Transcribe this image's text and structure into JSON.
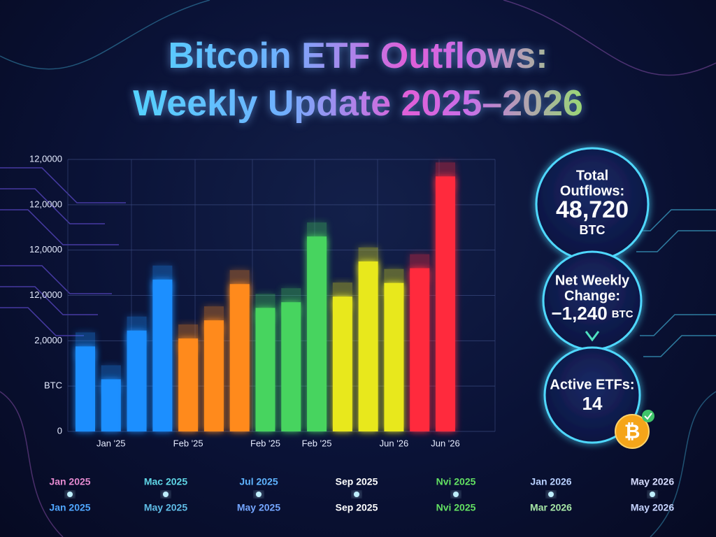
{
  "chart_data": {
    "type": "bar",
    "title": "Bitcoin ETF Outflows: Weekly Update 2025–2026",
    "categories": [
      null,
      "Jan '25",
      null,
      null,
      "Feb '25",
      null,
      null,
      "Feb '25",
      null,
      "Feb '25",
      null,
      null,
      "Jun '26",
      null,
      "Jun '26"
    ],
    "values": [
      3750,
      2300,
      4450,
      6700,
      4100,
      4900,
      6500,
      5450,
      5700,
      8600,
      5950,
      7500,
      6550,
      7200,
      11250
    ],
    "colors": [
      "#1e8fff",
      "#1e8fff",
      "#1e8fff",
      "#1e8fff",
      "#ff8a1a",
      "#ff8a1a",
      "#ff8a1a",
      "#46d45e",
      "#46d45e",
      "#46d45e",
      "#e8e81c",
      "#e8e81c",
      "#e8e81c",
      "#ff2a3c",
      "#ff2a3c"
    ],
    "ylim": [
      0,
      12000
    ],
    "yticks": [
      0,
      {
        "value": 2000,
        "label": "BTC"
      },
      {
        "value": 4000,
        "label": "2,0000"
      },
      {
        "value": 6000,
        "label": "12,0000"
      },
      {
        "value": 8000,
        "label": "12,0000"
      },
      {
        "value": 10000,
        "label": "12,0000"
      },
      {
        "value": 12000,
        "label": "12,0000"
      }
    ],
    "grid": true
  },
  "stats": [
    {
      "label": [
        "Total",
        "Outflows:"
      ],
      "value": "48,720",
      "unit": "BTC"
    },
    {
      "label": [
        "Net Weekly",
        "Change:"
      ],
      "value": "−1,240",
      "unit": "BTC"
    },
    {
      "label": [
        "Active ETFs:"
      ],
      "value": "14"
    }
  ],
  "timeline": {
    "top": [
      "Jan 2025",
      "Mac 2025",
      "Jul 2025",
      "Sep 2025",
      "Nvi 2025",
      "Jan 2026",
      "May 2026"
    ],
    "top_colors": [
      "#e58ad0",
      "#5fd6e6",
      "#5fb4ff",
      "#ffffff",
      "#62e062",
      "#b8d0ff",
      "#d6dcff"
    ],
    "bottom": [
      "Jan 2025",
      "May 2025",
      "May 2025",
      "Sep 2025",
      "Nvi 2025",
      "Mar 2026",
      "May 2026"
    ],
    "bottom_colors": [
      "#4fa6ff",
      "#5fbce6",
      "#74a6ff",
      "#ffffff",
      "#62e062",
      "#a6e6a6",
      "#c6d4ff"
    ]
  }
}
